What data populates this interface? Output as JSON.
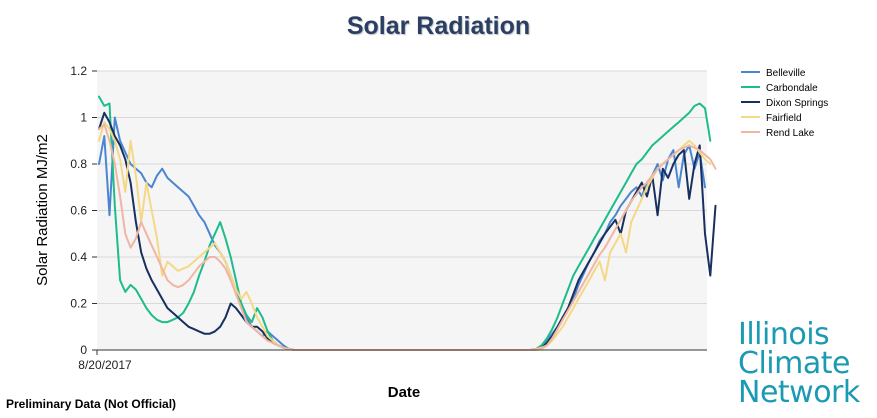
{
  "footer_note": "Preliminary Data (Not Official)",
  "logo": {
    "line1": "Illinois",
    "line2": "Climate",
    "line3": "Network"
  },
  "chart_data": {
    "type": "line",
    "title": "Solar Radiation",
    "xlabel": "Date",
    "ylabel": "Solar Radiation MJ/m2",
    "x_tick_labels": [
      "8/20/2017"
    ],
    "x_start": "8/20/2017",
    "x_step_days": 1,
    "ylim": [
      0,
      1.2
    ],
    "yticks": [
      0,
      0.2,
      0.4,
      0.6,
      0.8,
      1,
      1.2
    ],
    "grid": true,
    "legend_position": "top-right",
    "series": [
      {
        "name": "Belleville",
        "color": "#4a86d0",
        "values": [
          0.8,
          0.92,
          0.58,
          1.0,
          0.9,
          0.85,
          0.8,
          0.78,
          0.76,
          0.72,
          0.7,
          0.75,
          0.78,
          0.74,
          0.72,
          0.7,
          0.68,
          0.66,
          0.62,
          0.58,
          0.55,
          0.5,
          0.45,
          0.42,
          0.38,
          0.32,
          0.26,
          0.2,
          0.14,
          0.1,
          0.08,
          0.06,
          0.08,
          0.06,
          0.04,
          0.02,
          0.005,
          0,
          0,
          0,
          0,
          0,
          0,
          0,
          0,
          0,
          0,
          0,
          0,
          0,
          0,
          0,
          0,
          0,
          0,
          0,
          0,
          0,
          0,
          0,
          0,
          0,
          0,
          0,
          0,
          0,
          0,
          0,
          0,
          0,
          0,
          0,
          0,
          0,
          0,
          0,
          0,
          0,
          0,
          0,
          0,
          0,
          0,
          0.005,
          0.02,
          0.04,
          0.07,
          0.1,
          0.14,
          0.18,
          0.22,
          0.28,
          0.33,
          0.38,
          0.42,
          0.47,
          0.5,
          0.55,
          0.58,
          0.62,
          0.65,
          0.68,
          0.7,
          0.66,
          0.72,
          0.75,
          0.8,
          0.73,
          0.82,
          0.86,
          0.7,
          0.84,
          0.88,
          0.78,
          0.85,
          0.7
        ]
      },
      {
        "name": "Carbondale",
        "color": "#1dbc8c",
        "values": [
          1.09,
          1.05,
          1.06,
          0.62,
          0.3,
          0.25,
          0.28,
          0.26,
          0.22,
          0.18,
          0.15,
          0.13,
          0.12,
          0.12,
          0.13,
          0.14,
          0.16,
          0.2,
          0.25,
          0.32,
          0.38,
          0.45,
          0.5,
          0.55,
          0.48,
          0.4,
          0.3,
          0.2,
          0.15,
          0.12,
          0.18,
          0.14,
          0.08,
          0.04,
          0.02,
          0.01,
          0.005,
          0,
          0,
          0,
          0,
          0,
          0,
          0,
          0,
          0,
          0,
          0,
          0,
          0,
          0,
          0,
          0,
          0,
          0,
          0,
          0,
          0,
          0,
          0,
          0,
          0,
          0,
          0,
          0,
          0,
          0,
          0,
          0,
          0,
          0,
          0,
          0,
          0,
          0,
          0,
          0,
          0,
          0,
          0,
          0,
          0,
          0,
          0.005,
          0.02,
          0.05,
          0.09,
          0.14,
          0.2,
          0.26,
          0.32,
          0.36,
          0.4,
          0.44,
          0.48,
          0.52,
          0.56,
          0.6,
          0.64,
          0.68,
          0.72,
          0.76,
          0.8,
          0.82,
          0.85,
          0.88,
          0.9,
          0.92,
          0.94,
          0.96,
          0.98,
          1.0,
          1.02,
          1.05,
          1.06,
          1.04,
          0.9
        ]
      },
      {
        "name": "Dixon Springs",
        "color": "#17305f",
        "values": [
          0.95,
          1.02,
          0.98,
          0.92,
          0.88,
          0.82,
          0.72,
          0.55,
          0.42,
          0.35,
          0.3,
          0.26,
          0.22,
          0.18,
          0.16,
          0.14,
          0.12,
          0.1,
          0.09,
          0.08,
          0.07,
          0.07,
          0.08,
          0.1,
          0.14,
          0.2,
          0.18,
          0.15,
          0.12,
          0.1,
          0.1,
          0.08,
          0.05,
          0.03,
          0.02,
          0.01,
          0.005,
          0,
          0,
          0,
          0,
          0,
          0,
          0,
          0,
          0,
          0,
          0,
          0,
          0,
          0,
          0,
          0,
          0,
          0,
          0,
          0,
          0,
          0,
          0,
          0,
          0,
          0,
          0,
          0,
          0,
          0,
          0,
          0,
          0,
          0,
          0,
          0,
          0,
          0,
          0,
          0,
          0,
          0,
          0,
          0,
          0,
          0,
          0.005,
          0.01,
          0.03,
          0.06,
          0.1,
          0.14,
          0.18,
          0.24,
          0.3,
          0.34,
          0.38,
          0.42,
          0.46,
          0.5,
          0.53,
          0.56,
          0.5,
          0.6,
          0.64,
          0.68,
          0.72,
          0.66,
          0.75,
          0.58,
          0.78,
          0.74,
          0.8,
          0.84,
          0.86,
          0.65,
          0.8,
          0.88,
          0.5,
          0.32,
          0.62
        ]
      },
      {
        "name": "Fairfield",
        "color": "#f5d886",
        "values": [
          0.9,
          0.98,
          0.95,
          0.9,
          0.82,
          0.68,
          0.9,
          0.75,
          0.55,
          0.72,
          0.6,
          0.48,
          0.32,
          0.38,
          0.36,
          0.34,
          0.35,
          0.36,
          0.38,
          0.4,
          0.42,
          0.44,
          0.46,
          0.42,
          0.38,
          0.32,
          0.26,
          0.22,
          0.25,
          0.2,
          0.14,
          0.1,
          0.06,
          0.04,
          0.02,
          0.01,
          0.005,
          0,
          0,
          0,
          0,
          0,
          0,
          0,
          0,
          0,
          0,
          0,
          0,
          0,
          0,
          0,
          0,
          0,
          0,
          0,
          0,
          0,
          0,
          0,
          0,
          0,
          0,
          0,
          0,
          0,
          0,
          0,
          0,
          0,
          0,
          0,
          0,
          0,
          0,
          0,
          0,
          0,
          0,
          0,
          0,
          0,
          0,
          0.005,
          0.01,
          0.02,
          0.04,
          0.07,
          0.1,
          0.14,
          0.18,
          0.22,
          0.26,
          0.3,
          0.34,
          0.38,
          0.3,
          0.42,
          0.46,
          0.5,
          0.42,
          0.55,
          0.6,
          0.65,
          0.7,
          0.74,
          0.78,
          0.8,
          0.82,
          0.84,
          0.86,
          0.88,
          0.9,
          0.88,
          0.85,
          0.82,
          0.8
        ]
      },
      {
        "name": "Rend Lake",
        "color": "#f1b6a1",
        "values": [
          0.95,
          0.97,
          0.9,
          0.8,
          0.66,
          0.5,
          0.44,
          0.48,
          0.55,
          0.5,
          0.45,
          0.4,
          0.35,
          0.3,
          0.28,
          0.27,
          0.28,
          0.3,
          0.33,
          0.36,
          0.38,
          0.4,
          0.4,
          0.38,
          0.35,
          0.3,
          0.24,
          0.18,
          0.12,
          0.1,
          0.08,
          0.06,
          0.04,
          0.03,
          0.02,
          0.01,
          0.005,
          0,
          0,
          0,
          0,
          0,
          0,
          0,
          0,
          0,
          0,
          0,
          0,
          0,
          0,
          0,
          0,
          0,
          0,
          0,
          0,
          0,
          0,
          0,
          0,
          0,
          0,
          0,
          0,
          0,
          0,
          0,
          0,
          0,
          0,
          0,
          0,
          0,
          0,
          0,
          0,
          0,
          0,
          0,
          0,
          0,
          0,
          0,
          0.005,
          0.02,
          0.05,
          0.09,
          0.13,
          0.17,
          0.21,
          0.25,
          0.29,
          0.33,
          0.37,
          0.41,
          0.44,
          0.48,
          0.52,
          0.56,
          0.6,
          0.64,
          0.67,
          0.7,
          0.72,
          0.75,
          0.78,
          0.8,
          0.82,
          0.84,
          0.86,
          0.87,
          0.88,
          0.87,
          0.86,
          0.84,
          0.82,
          0.78
        ]
      }
    ]
  }
}
